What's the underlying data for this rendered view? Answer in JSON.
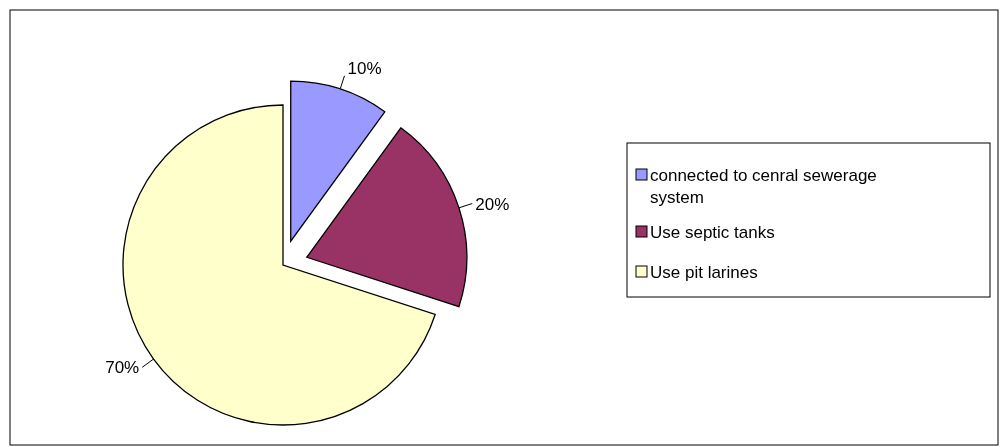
{
  "chart_data": {
    "type": "pie",
    "categories": [
      "connected to cenral sewerage system",
      "Use septic tanks",
      "Use pit larines"
    ],
    "values": [
      10,
      20,
      70
    ],
    "colors": [
      "#9999ff",
      "#993366",
      "#ffffcc"
    ],
    "value_labels": [
      "10%",
      "20%",
      "70%"
    ],
    "legend": "right"
  }
}
